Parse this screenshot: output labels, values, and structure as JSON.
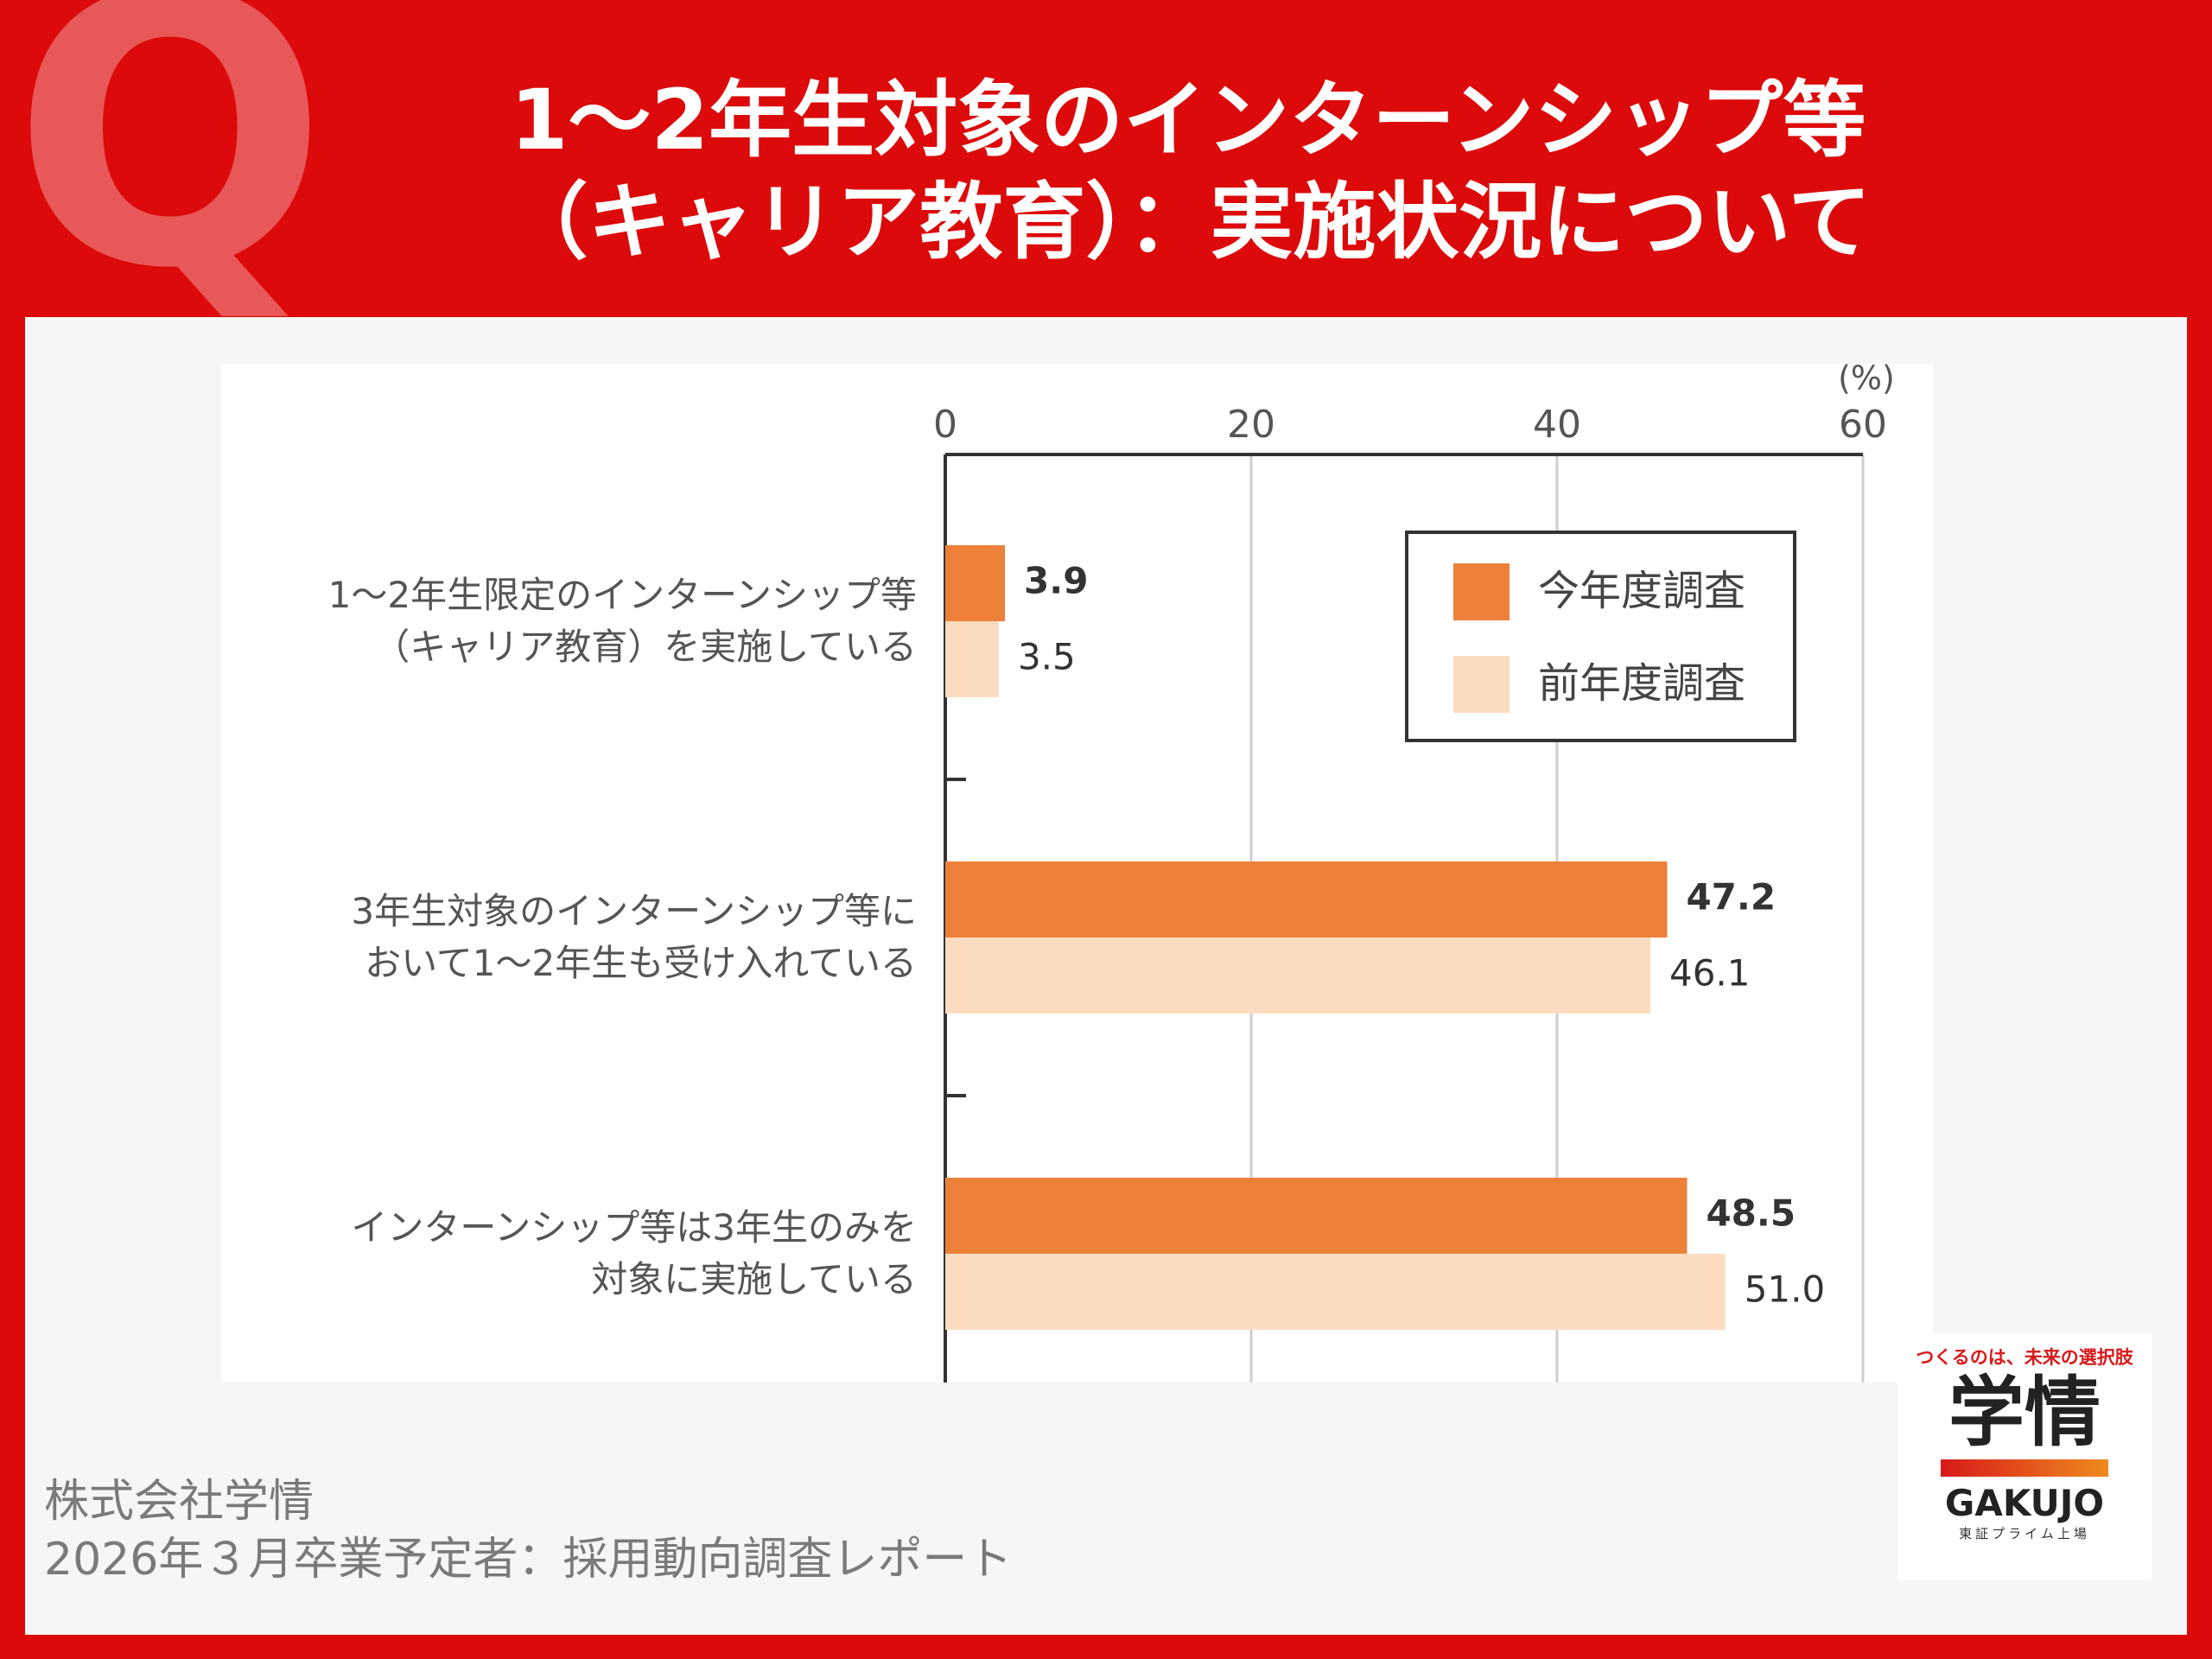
{
  "header": {
    "badge": "Q",
    "title": "1～2年生対象のインターンシップ等\n（キャリア教育）：実施状況について"
  },
  "chart_data": {
    "type": "bar",
    "orientation": "horizontal",
    "x_unit_label": "(%)",
    "categories": [
      "1～2年生限定のインターンシップ等\n（キャリア教育）を実施している",
      "3年生対象のインターンシップ等に\nおいて1～2年生も受け入れている",
      "インターンシップ等は3年生のみを\n対象に実施している"
    ],
    "series": [
      {
        "name": "今年度調査",
        "color": "#ed8139",
        "values": [
          3.9,
          47.2,
          48.5
        ]
      },
      {
        "name": "前年度調査",
        "color": "#fbdcc0",
        "values": [
          3.5,
          46.1,
          51.0
        ],
        "value_labels": [
          "3.5",
          "46.1",
          "51.0"
        ]
      }
    ],
    "xlim": [
      0,
      60
    ],
    "xticks": [
      0,
      20,
      40,
      60
    ],
    "grid": true,
    "legend": "upper right"
  },
  "footer": {
    "company": "株式会社学情",
    "report": "2026年３月卒業予定者：採用動向調査レポート"
  },
  "logo": {
    "tagline": "つくるのは、未来の選択肢",
    "name": "学情",
    "romaji": "GAKUJO",
    "listing": "東証プライム上場"
  }
}
